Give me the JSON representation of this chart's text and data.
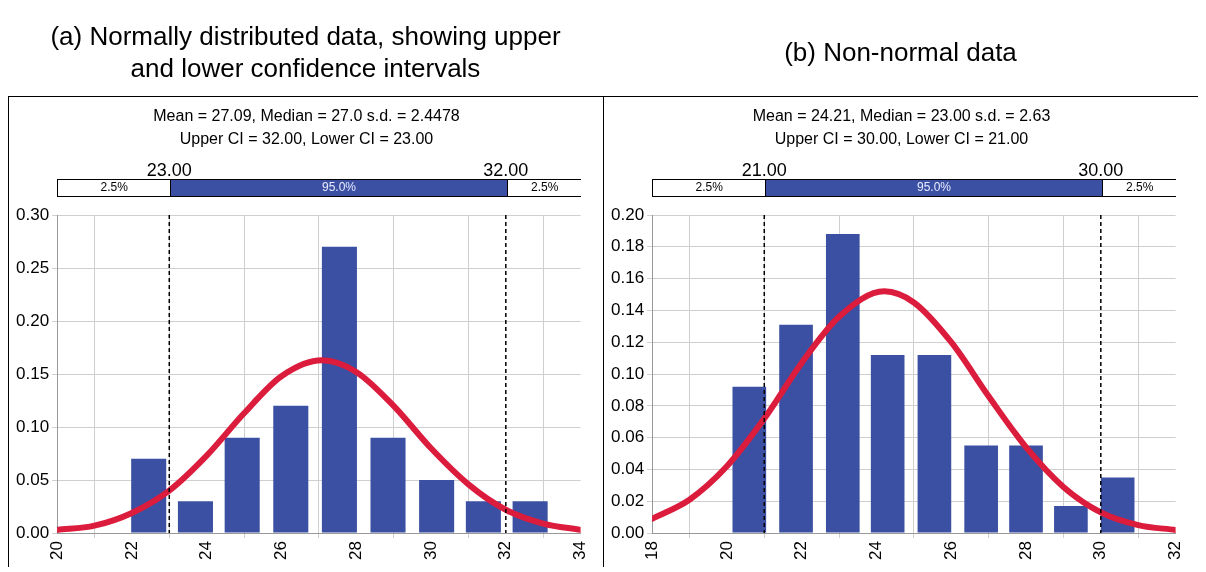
{
  "chart_data": [
    {
      "type": "histogram",
      "title": "(a) Normally distributed data, showing upper and lower confidence intervals",
      "subtitle": "Mean = 27.09, Median = 27.0 s.d. = 2.4478\nUpper CI = 32.00, Lower CI = 23.00",
      "bins": [
        21.8,
        23.1,
        24.3,
        25.6,
        26.9,
        28.2,
        29.5,
        30.8,
        32.0,
        33.3
      ],
      "values": [
        0.07,
        0.03,
        0.09,
        0.12,
        0.27,
        0.09,
        0.05,
        0.03,
        0.03
      ],
      "color": "#3b50a3",
      "series": [
        {
          "type": "line",
          "color": "#dc1c3c",
          "x": [
            20,
            21,
            22,
            23,
            24,
            25,
            26,
            27.09,
            28,
            29,
            30,
            31,
            32,
            33,
            34
          ],
          "values": [
            0.003,
            0.007,
            0.019,
            0.04,
            0.073,
            0.113,
            0.148,
            0.163,
            0.152,
            0.12,
            0.08,
            0.046,
            0.022,
            0.009,
            0.003
          ]
        }
      ],
      "xlim": [
        20,
        34
      ],
      "xticks": [
        20,
        22,
        24,
        26,
        28,
        30,
        32,
        34
      ],
      "ylim": [
        0,
        0.3
      ],
      "yticks": [
        {
          "value": 0,
          "label": "0.00"
        },
        {
          "value": 0.05,
          "label": "0.05"
        },
        {
          "value": 0.1,
          "label": "0.10"
        },
        {
          "value": 0.15,
          "label": "0.15"
        },
        {
          "value": 0.2,
          "label": "0.20"
        },
        {
          "value": 0.25,
          "label": "0.25"
        },
        {
          "value": 0.3,
          "label": "0.30"
        }
      ],
      "ref_lines": [
        {
          "axis": "x",
          "value": 23,
          "label": "23.00",
          "color": "#000000",
          "line_style": "dashed"
        },
        {
          "axis": "x",
          "value": 32,
          "label": "32.00",
          "color": "#000000",
          "line_style": "dashed"
        }
      ],
      "annotations": [
        "2.5%",
        "95.0%",
        "2.5%"
      ],
      "grid": true,
      "legend": false
    },
    {
      "type": "histogram",
      "title": "(b) Non-normal data",
      "subtitle": "Mean = 24.21, Median = 23.00 s.d. = 2.63\nUpper CI = 30.00, Lower CI = 21.00",
      "bins": [
        20.0,
        21.2,
        22.5,
        23.7,
        24.9,
        26.2,
        27.4,
        28.6,
        29.8,
        31.1
      ],
      "values": [
        0.092,
        0.131,
        0.188,
        0.112,
        0.112,
        0.055,
        0.055,
        0.017,
        0.035
      ],
      "color": "#3b50a3",
      "series": [
        {
          "type": "line",
          "color": "#dc1c3c",
          "x": [
            18,
            19,
            20,
            21,
            22,
            23,
            24.21,
            25,
            26,
            27,
            28,
            29,
            30,
            31,
            32
          ],
          "values": [
            0.009,
            0.021,
            0.042,
            0.072,
            0.107,
            0.136,
            0.152,
            0.145,
            0.12,
            0.086,
            0.054,
            0.029,
            0.013,
            0.005,
            0.002
          ]
        }
      ],
      "xlim": [
        18,
        32
      ],
      "xticks": [
        18,
        20,
        22,
        24,
        26,
        28,
        30,
        32
      ],
      "ylim": [
        0,
        0.2
      ],
      "yticks": [
        {
          "value": 0,
          "label": "0.00"
        },
        {
          "value": 0.02,
          "label": "0.02"
        },
        {
          "value": 0.04,
          "label": "0.04"
        },
        {
          "value": 0.06,
          "label": "0.06"
        },
        {
          "value": 0.08,
          "label": "0.08"
        },
        {
          "value": 0.1,
          "label": "0.10"
        },
        {
          "value": 0.12,
          "label": "0.12"
        },
        {
          "value": 0.14,
          "label": "0.14"
        },
        {
          "value": 0.16,
          "label": "0.16"
        },
        {
          "value": 0.18,
          "label": "0.18"
        },
        {
          "value": 0.2,
          "label": "0.20"
        }
      ],
      "ref_lines": [
        {
          "axis": "x",
          "value": 21,
          "label": "21.00",
          "color": "#000000",
          "line_style": "dashed"
        },
        {
          "axis": "x",
          "value": 30,
          "label": "30.00",
          "color": "#000000",
          "line_style": "dashed"
        }
      ],
      "annotations": [
        "2.5%",
        "95.0%",
        "2.5%"
      ],
      "grid": true,
      "legend": false
    }
  ]
}
